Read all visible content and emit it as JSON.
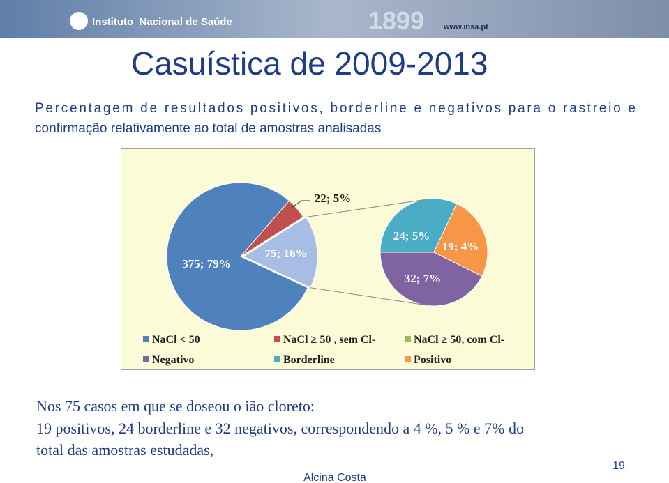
{
  "header": {
    "logo": "Instituto_Nacional de Saúde",
    "year": "1899",
    "url": "www.insa.pt"
  },
  "title": "Casuística de 2009-2013",
  "subtitle": [
    "Percentagem de resultados positivos, borderline e negativos para o rastreio e",
    "confirmação relativamente ao total de amostras analisadas"
  ],
  "chart_data": {
    "type": "pie-of-pie",
    "categories": [
      "NaCl < 50",
      "NaCl ≥ 50 , sem Cl-",
      "NaCl ≥ 50, com Cl-",
      "Negativo",
      "Borderline",
      "Positivo"
    ],
    "colors": [
      "#4f81bd",
      "#c0504d",
      "#9bbb59",
      "#8064a2",
      "#4bacc6",
      "#f79646"
    ],
    "split_color": "#a7bde3",
    "values": [
      375,
      22,
      75,
      32,
      24,
      19
    ],
    "value_labels": [
      "375; 79%",
      "22; 5%",
      "75; 16%",
      "32; 7%",
      "24; 5%",
      "19; 4%"
    ]
  },
  "body": [
    "Nos 75 casos  em que se doseou o ião cloreto:",
    "19 positivos, 24 borderline e 32 negativos, correspondendo a 4 %, 5 % e 7% do",
    "total das amostras estudadas,"
  ],
  "footer": {
    "author": "Alcina Costa",
    "page": "19"
  }
}
